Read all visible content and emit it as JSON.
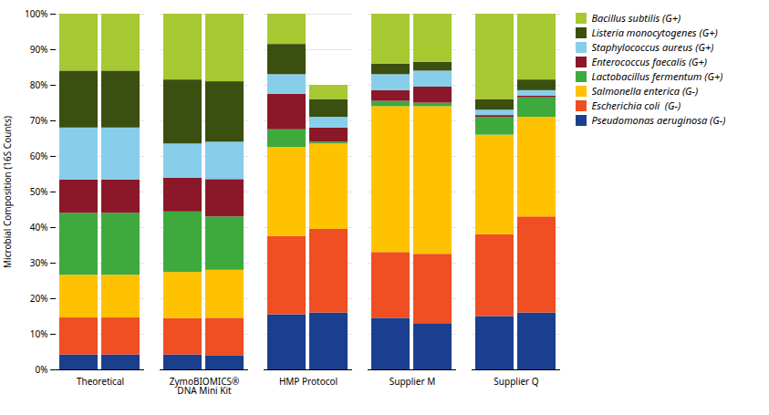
{
  "chart_data": {
    "type": "bar",
    "stacked": true,
    "categories": [
      "Theoretical",
      "ZymoBIOMICS®\nDNA Mini Kit",
      "HMP Protocol",
      "Supplier M",
      "Supplier Q"
    ],
    "ylabel": "Microbial Composition (16S Counts)",
    "series": [
      {
        "name": "Bacillus subtilis (G+)",
        "color": "#a8c832",
        "values": [
          [
            16.0,
            16.0
          ],
          [
            18.5,
            19.0
          ],
          [
            8.5,
            4.0
          ],
          [
            14.0,
            13.5
          ],
          [
            24.0,
            18.5
          ]
        ]
      },
      {
        "name": "Listeria monocytogenes (G+)",
        "color": "#3a4f10",
        "values": [
          [
            16.0,
            16.0
          ],
          [
            18.0,
            17.0
          ],
          [
            8.5,
            5.0
          ],
          [
            3.0,
            2.5
          ],
          [
            3.0,
            3.0
          ]
        ]
      },
      {
        "name": "Staphylococcus aureus (G+)",
        "color": "#87ceeb",
        "values": [
          [
            14.6,
            14.6
          ],
          [
            9.6,
            10.5
          ],
          [
            5.5,
            3.0
          ],
          [
            4.5,
            4.5
          ],
          [
            1.5,
            1.5
          ]
        ]
      },
      {
        "name": "Enterococcus faecalis (G+)",
        "color": "#8b1828",
        "values": [
          [
            9.4,
            9.4
          ],
          [
            9.5,
            10.5
          ],
          [
            10.0,
            4.0
          ],
          [
            3.0,
            4.5
          ],
          [
            0.5,
            0.5
          ]
        ]
      },
      {
        "name": "Lactobacillus fermentum (G+)",
        "color": "#3eaa3e",
        "values": [
          [
            17.4,
            17.4
          ],
          [
            17.0,
            15.0
          ],
          [
            5.0,
            0.5
          ],
          [
            1.5,
            1.0
          ],
          [
            5.0,
            5.5
          ]
        ]
      },
      {
        "name": "Salmonella enterica (G-)",
        "color": "#ffc200",
        "values": [
          [
            12.0,
            12.0
          ],
          [
            13.0,
            13.5
          ],
          [
            25.0,
            24.0
          ],
          [
            41.0,
            41.5
          ],
          [
            28.0,
            28.0
          ]
        ]
      },
      {
        "name": "Escherichia coli  (G-)",
        "color": "#f04e23",
        "values": [
          [
            10.4,
            10.4
          ],
          [
            10.2,
            10.5
          ],
          [
            22.0,
            23.5
          ],
          [
            18.5,
            19.5
          ],
          [
            23.0,
            27.0
          ]
        ]
      },
      {
        "name": "Pseudomonas aeruginosa (G-)",
        "color": "#1a3f8f",
        "values": [
          [
            4.2,
            4.2
          ],
          [
            4.2,
            4.0
          ],
          [
            15.5,
            16.0
          ],
          [
            14.5,
            13.0
          ],
          [
            15.0,
            16.0
          ]
        ]
      }
    ],
    "ylim": [
      0,
      100
    ],
    "yticks": [
      {
        "value": 0,
        "label": "0%"
      },
      {
        "value": 10,
        "label": "10%"
      },
      {
        "value": 20,
        "label": "20%"
      },
      {
        "value": 30,
        "label": "30%"
      },
      {
        "value": 40,
        "label": "40%"
      },
      {
        "value": 50,
        "label": "50%"
      },
      {
        "value": 60,
        "label": "60%"
      },
      {
        "value": 70,
        "label": "70%"
      },
      {
        "value": 80,
        "label": "80%"
      },
      {
        "value": 90,
        "label": "90%"
      },
      {
        "value": 100,
        "label": "100%"
      }
    ],
    "grid": true,
    "legend": "right"
  }
}
